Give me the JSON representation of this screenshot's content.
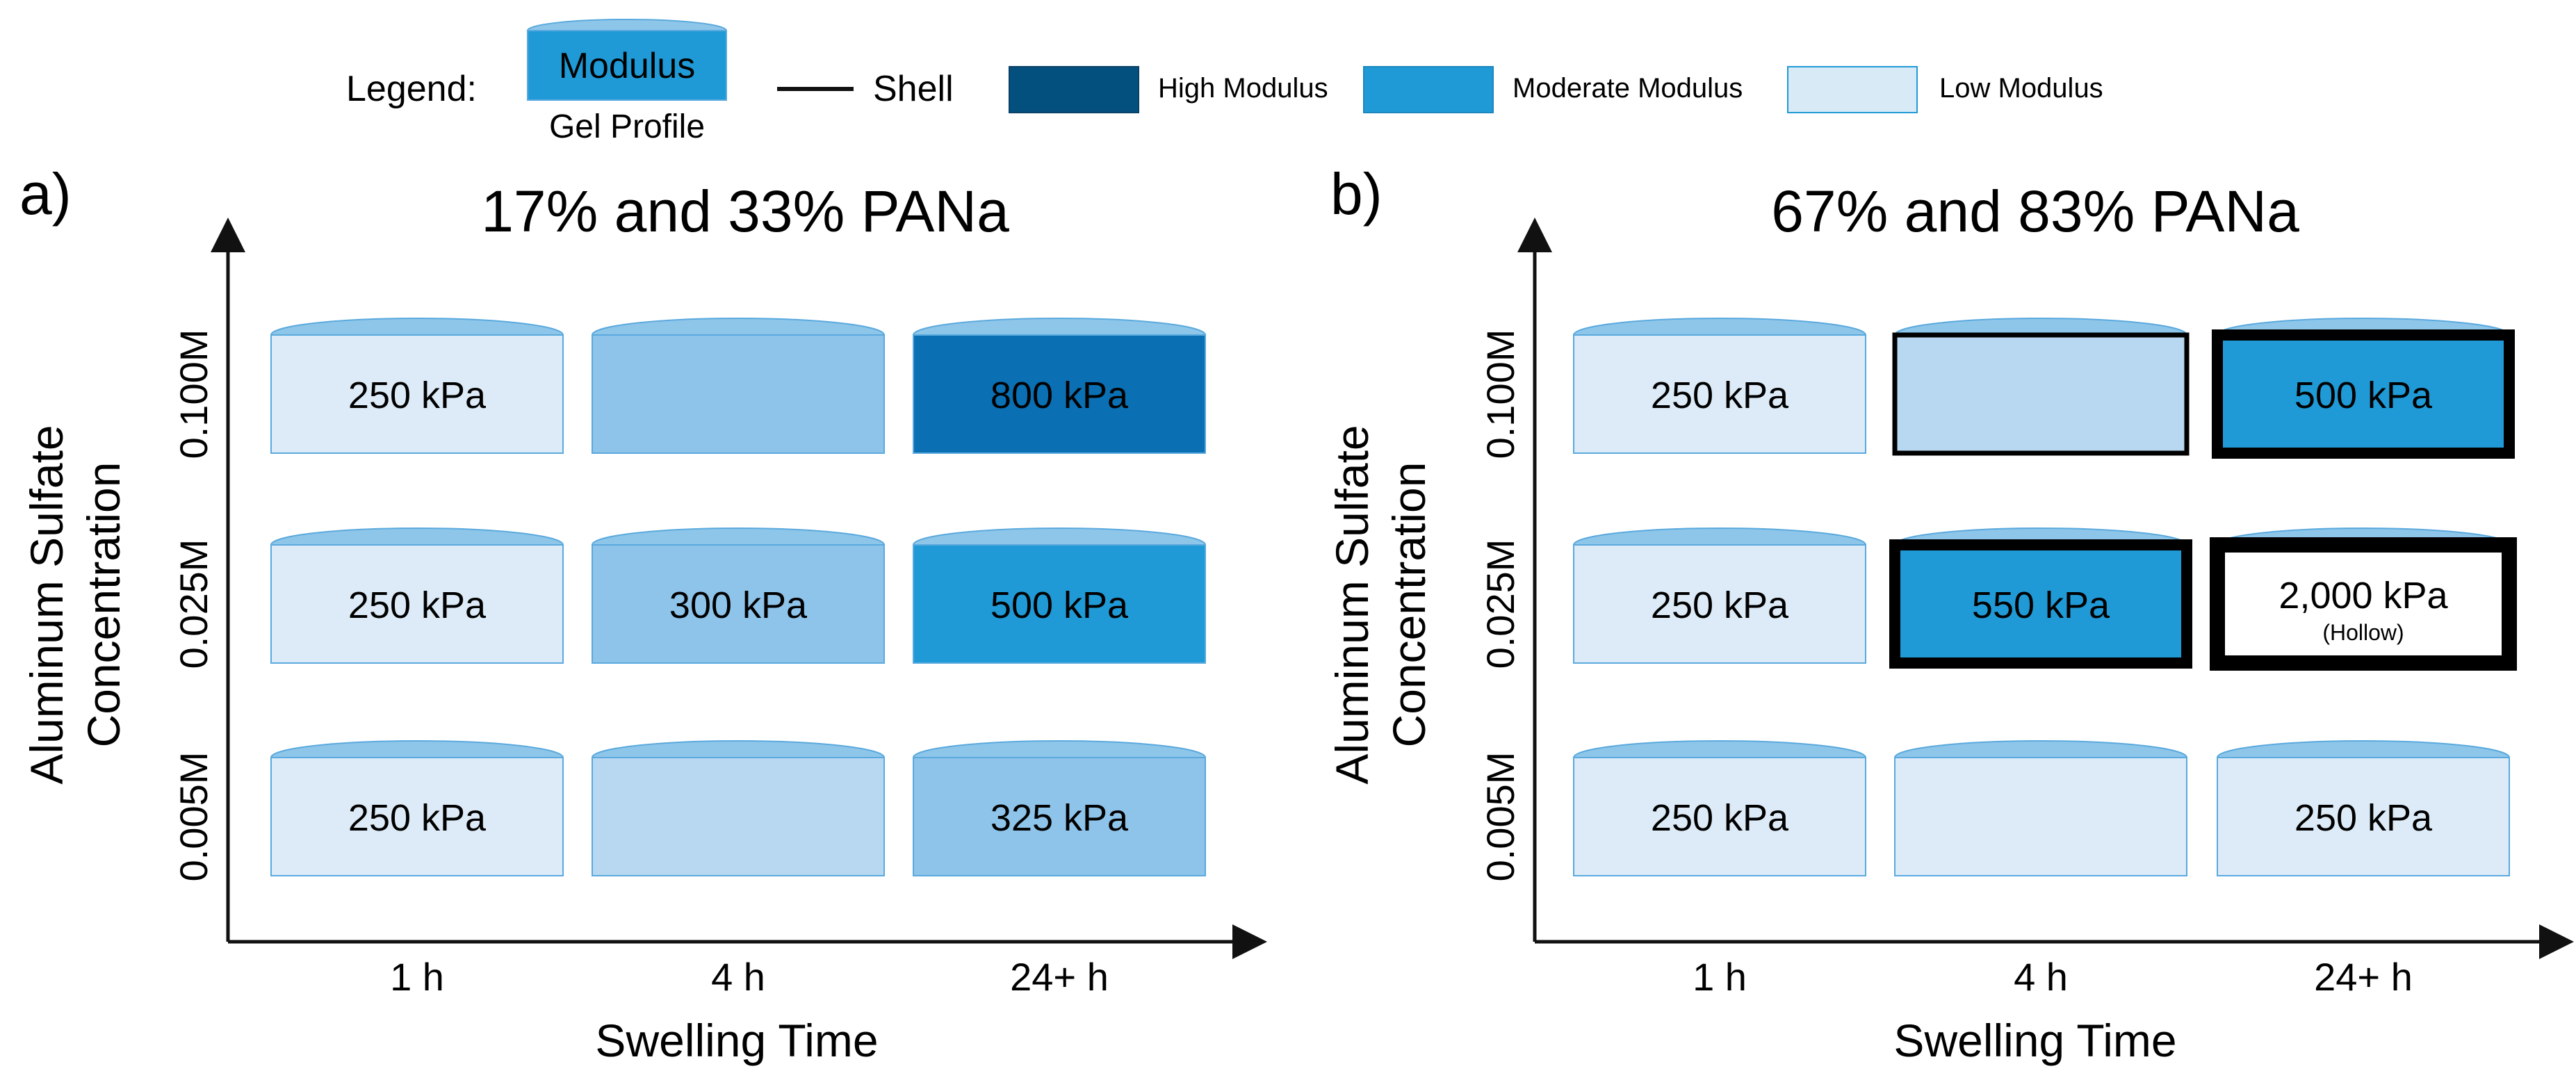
{
  "colors": {
    "very_light": "#dcebf7",
    "light": "#b7d8f0",
    "medium_light": "#8ec3ea",
    "moderate": "#1f9ad6",
    "high": "#0a6fb3",
    "legend_high": "#03507f",
    "legend_moderate": "#1f9ad6",
    "legend_low": "#d9eaf7",
    "cap": "#8ec6ea",
    "cap_edge": "#5aa9dd",
    "hollow": "#ffffff"
  },
  "legend": {
    "label": "Legend:",
    "gel_box_text": "Modulus",
    "gel_caption": "Gel Profile",
    "shell_label": "Shell",
    "high_label": "High Modulus",
    "moderate_label": "Moderate Modulus",
    "low_label": "Low Modulus"
  },
  "panels": [
    {
      "panel_label": "a)",
      "title": "17% and 33% PANa",
      "ylabel_line1": "Aluminum Sulfate",
      "ylabel_line2": "Concentration",
      "xlabel": "Swelling Time",
      "row_labels": [
        "0.100M",
        "0.025M",
        "0.005M"
      ],
      "col_labels": [
        "1 h",
        "4 h",
        "24+ h"
      ],
      "cells": [
        [
          {
            "text": "250 kPa",
            "sub": "",
            "fill": "very_light",
            "shell": "none"
          },
          {
            "text": "",
            "sub": "",
            "fill": "medium_light",
            "shell": "none"
          },
          {
            "text": "800 kPa",
            "sub": "",
            "fill": "high",
            "shell": "none"
          }
        ],
        [
          {
            "text": "250 kPa",
            "sub": "",
            "fill": "very_light",
            "shell": "none"
          },
          {
            "text": "300 kPa",
            "sub": "",
            "fill": "medium_light",
            "shell": "none"
          },
          {
            "text": "500 kPa",
            "sub": "",
            "fill": "moderate",
            "shell": "none"
          }
        ],
        [
          {
            "text": "250 kPa",
            "sub": "",
            "fill": "very_light",
            "shell": "none"
          },
          {
            "text": "",
            "sub": "",
            "fill": "light",
            "shell": "none"
          },
          {
            "text": "325 kPa",
            "sub": "",
            "fill": "medium_light",
            "shell": "none"
          }
        ]
      ]
    },
    {
      "panel_label": "b)",
      "title": "67% and 83% PANa",
      "ylabel_line1": "Aluminum Sulfate",
      "ylabel_line2": "Concentration",
      "xlabel": "Swelling Time",
      "row_labels": [
        "0.100M",
        "0.025M",
        "0.005M"
      ],
      "col_labels": [
        "1 h",
        "4 h",
        "24+ h"
      ],
      "cells": [
        [
          {
            "text": "250 kPa",
            "sub": "",
            "fill": "very_light",
            "shell": "none"
          },
          {
            "text": "",
            "sub": "",
            "fill": "light",
            "shell": "thin"
          },
          {
            "text": "500 kPa",
            "sub": "",
            "fill": "moderate",
            "shell": "thick"
          }
        ],
        [
          {
            "text": "250 kPa",
            "sub": "",
            "fill": "very_light",
            "shell": "none"
          },
          {
            "text": "550 kPa",
            "sub": "",
            "fill": "moderate",
            "shell": "thick"
          },
          {
            "text": "2,000 kPa",
            "sub": "(Hollow)",
            "fill": "hollow",
            "shell": "thicker"
          }
        ],
        [
          {
            "text": "250 kPa",
            "sub": "",
            "fill": "very_light",
            "shell": "none"
          },
          {
            "text": "",
            "sub": "",
            "fill": "very_light",
            "shell": "none"
          },
          {
            "text": "250 kPa",
            "sub": "",
            "fill": "very_light",
            "shell": "none"
          }
        ]
      ]
    }
  ]
}
